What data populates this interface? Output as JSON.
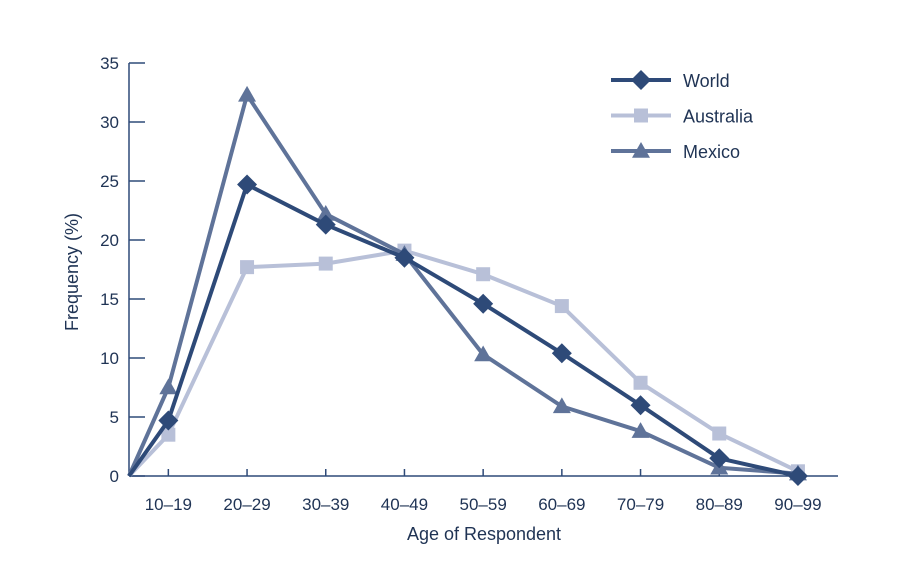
{
  "chart_data": {
    "type": "line",
    "xlabel": "Age of Respondent",
    "ylabel": "Frequency (%)",
    "categories": [
      "10–19",
      "20–29",
      "30–39",
      "40–49",
      "50–59",
      "60–69",
      "70–79",
      "80–89",
      "90–99"
    ],
    "ylim": [
      0,
      35
    ],
    "yticks": [
      "0",
      "5",
      "10",
      "15",
      "20",
      "25",
      "30",
      "35"
    ],
    "grid": false,
    "legend_position": "top-right",
    "series": [
      {
        "name": "World",
        "marker": "diamond",
        "color": "#2e4a78",
        "start": 0,
        "values": [
          4.7,
          24.7,
          21.3,
          18.5,
          14.6,
          10.4,
          6.0,
          1.5,
          0.0
        ]
      },
      {
        "name": "Australia",
        "marker": "square",
        "color": "#b8c0d8",
        "start": 0,
        "values": [
          3.5,
          17.7,
          18.0,
          19.1,
          17.1,
          14.4,
          7.9,
          3.6,
          0.4
        ]
      },
      {
        "name": "Mexico",
        "marker": "triangle",
        "color": "#5f7399",
        "start": 0,
        "values": [
          7.5,
          32.3,
          22.2,
          18.8,
          10.3,
          5.9,
          3.8,
          0.7,
          0.2
        ]
      }
    ]
  }
}
